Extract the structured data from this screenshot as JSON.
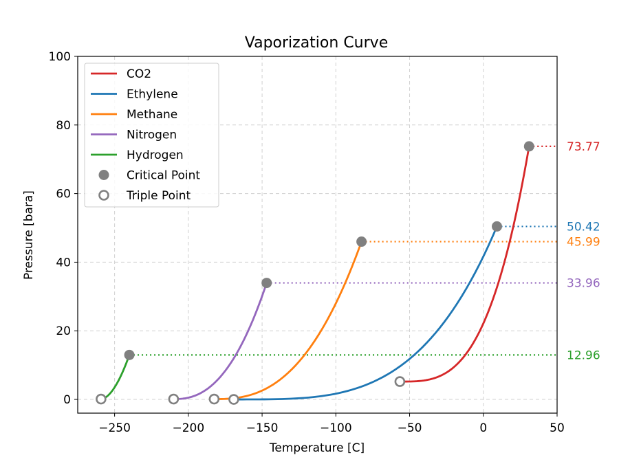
{
  "chart_data": {
    "type": "line",
    "title": "Vaporization Curve",
    "xlabel": "Temperature [C]",
    "ylabel": "Pressure [bara]",
    "xlim": [
      -275,
      50
    ],
    "ylim": [
      -4,
      100
    ],
    "xticks": [
      -250,
      -200,
      -150,
      -100,
      -50,
      0,
      50
    ],
    "yticks": [
      0,
      20,
      40,
      60,
      80,
      100
    ],
    "grid": true,
    "legend_position": "top-left",
    "series": [
      {
        "name": "CO2",
        "color": "#d62728",
        "triple_point": {
          "x": -56.6,
          "y": 5.2
        },
        "critical_point": {
          "x": 31.0,
          "y": 73.77
        },
        "curve_shape": 3.2
      },
      {
        "name": "Ethylene",
        "color": "#1f77b4",
        "triple_point": {
          "x": -169.2,
          "y": 0.0
        },
        "critical_point": {
          "x": 9.2,
          "y": 50.42
        },
        "curve_shape": 3.6
      },
      {
        "name": "Methane",
        "color": "#ff7f0e",
        "triple_point": {
          "x": -182.5,
          "y": 0.1
        },
        "critical_point": {
          "x": -82.6,
          "y": 45.99
        },
        "curve_shape": 2.6
      },
      {
        "name": "Nitrogen",
        "color": "#9467bd",
        "triple_point": {
          "x": -210.0,
          "y": 0.1
        },
        "critical_point": {
          "x": -146.9,
          "y": 33.96
        },
        "curve_shape": 2.4
      },
      {
        "name": "Hydrogen",
        "color": "#2ca02c",
        "triple_point": {
          "x": -259.2,
          "y": 0.1
        },
        "critical_point": {
          "x": -240.0,
          "y": 12.96
        },
        "curve_shape": 1.8
      }
    ],
    "marker_legend": [
      {
        "name": "Critical Point",
        "style": "filled",
        "color": "#808080"
      },
      {
        "name": "Triple Point",
        "style": "hollow",
        "color": "#808080"
      }
    ],
    "critical_pressure_labels": [
      "73.77",
      "50.42",
      "45.99",
      "33.96",
      "12.96"
    ]
  }
}
